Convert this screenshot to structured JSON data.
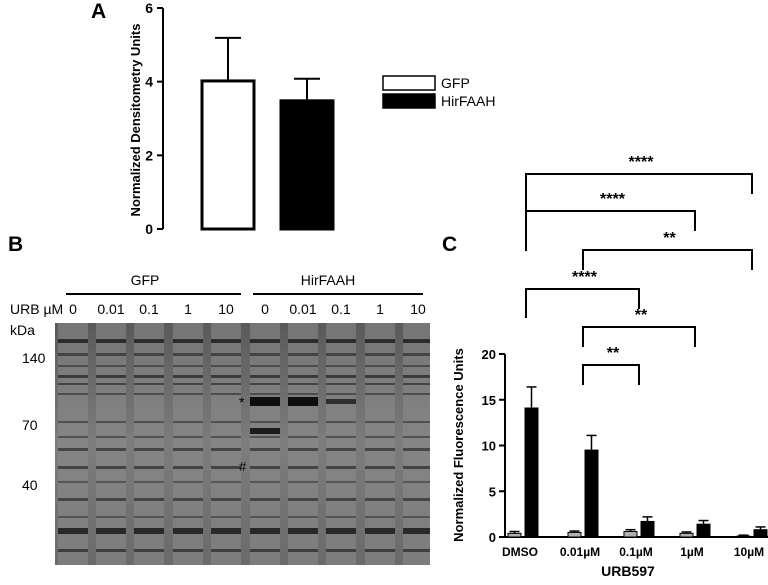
{
  "panels": {
    "a": "A",
    "b": "B",
    "c": "C"
  },
  "chart_data": [
    {
      "type": "bar",
      "panel": "A",
      "ylabel": "Normalized Densitometry Units",
      "xlabel": "",
      "ylim": [
        0,
        6
      ],
      "yticks": [
        "0",
        "2",
        "4",
        "6"
      ],
      "categories": [
        "GFP",
        "HirFAAH"
      ],
      "values": [
        4.02,
        3.48
      ],
      "errors": [
        1.17,
        0.6
      ],
      "colors": {
        "GFP": "#ffffff",
        "HirFAAH": "#000000"
      },
      "legend": {
        "position": "right",
        "entries": [
          "GFP",
          "HirFAAH"
        ]
      }
    },
    {
      "type": "bar",
      "panel": "C",
      "ylabel": "Normalized Fluorescence Units",
      "xlabel": "URB597",
      "ylim": [
        0,
        20
      ],
      "yticks": [
        "0",
        "5",
        "10",
        "15",
        "20"
      ],
      "categories": [
        "DMSO",
        "0.01µM",
        "0.1µM",
        "1µM",
        "10µM"
      ],
      "series": [
        {
          "values": [
            0.4,
            0.5,
            0.6,
            0.4,
            0.1
          ],
          "errors": [
            0.2,
            0.15,
            0.2,
            0.15,
            0.1
          ],
          "color": "#b0b0b0"
        },
        {
          "values": [
            14.1,
            9.5,
            1.7,
            1.4,
            0.8
          ],
          "errors": [
            2.3,
            1.6,
            0.5,
            0.4,
            0.3
          ],
          "color": "#000000"
        }
      ],
      "significance": [
        {
          "label": "****",
          "from": "DMSO",
          "to": "10µM"
        },
        {
          "label": "****",
          "from": "DMSO",
          "to": "1µM"
        },
        {
          "label": "**",
          "from": "0.01µM",
          "to": "10µM"
        },
        {
          "label": "****",
          "from": "DMSO",
          "to": "0.1µM"
        },
        {
          "label": "**",
          "from": "0.01µM",
          "to": "1µM"
        },
        {
          "label": "**",
          "from": "0.01µM",
          "to": "0.1µM"
        }
      ]
    }
  ],
  "gel": {
    "groups": [
      "GFP",
      "HirFAAH"
    ],
    "urb_label": "URB µM",
    "lanes": [
      "0",
      "0.01",
      "0.1",
      "1",
      "10",
      "0",
      "0.01",
      "0.1",
      "1",
      "10"
    ],
    "kda_label": "kDa",
    "markers": [
      "140",
      "70",
      "40"
    ],
    "annotations": [
      "*",
      "#"
    ]
  }
}
